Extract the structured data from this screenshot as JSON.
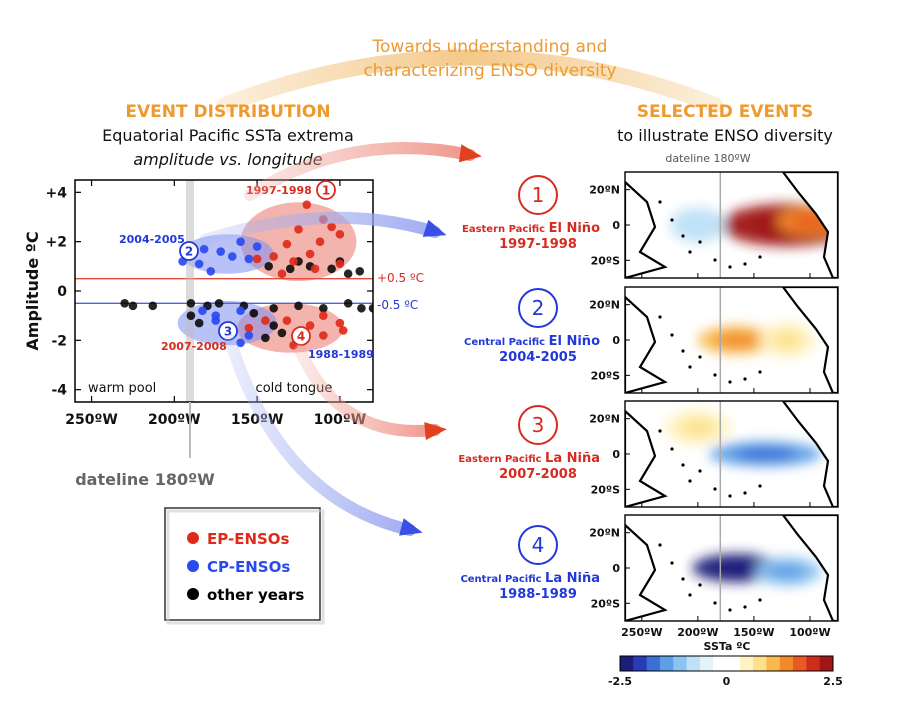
{
  "header": {
    "title_line1": "Towards understanding and",
    "title_line2": "characterizing ENSO diversity"
  },
  "left": {
    "heading": "EVENT DISTRIBUTION",
    "subtitle1": "Equatorial Pacific SSTa extrema",
    "subtitle2": "amplitude vs. longitude",
    "dateline_label": "dateline 180ºW",
    "pos_threshold_label": "+0.5 ºC",
    "neg_threshold_label": "-0.5 ºC",
    "warm_pool_label": "warm pool",
    "cold_tongue_label": "cold tongue",
    "event_labels": [
      {
        "text": "1997-1998",
        "color": "#d62b1e"
      },
      {
        "text": "2004-2005",
        "color": "#2238d8"
      },
      {
        "text": "1988-1989",
        "color": "#2238d8"
      },
      {
        "text": "2007-2008",
        "color": "#d62b1e"
      }
    ]
  },
  "right": {
    "heading": "SELECTED EVENTS",
    "subtitle": "to illustrate ENSO diversity",
    "dateline_label": "dateline 180ºW",
    "events": [
      {
        "num": "1",
        "small": "Eastern Pacific",
        "big": "El Niño",
        "years": "1997-1998",
        "color": "#d62b1e"
      },
      {
        "num": "2",
        "small": "Central Pacific",
        "big": "El Niño",
        "years": "2004-2005",
        "color": "#2238d8"
      },
      {
        "num": "3",
        "small": "Eastern Pacific",
        "big": "La Niña",
        "years": "2007-2008",
        "color": "#d62b1e"
      },
      {
        "num": "4",
        "small": "Central Pacific",
        "big": "La Niña",
        "years": "1988-1989",
        "color": "#2238d8"
      }
    ],
    "map_lat_labels": [
      "20ºN",
      "0",
      "20ºS"
    ],
    "map_lon_labels": [
      "250ºW",
      "200ºW",
      "150ºW",
      "100ºW"
    ],
    "colorbar": {
      "title": "SSTa ºC",
      "tick_labels": [
        "-2.5",
        "0",
        "2.5"
      ],
      "colors": [
        "#1b1f7a",
        "#2a3bb8",
        "#3c6fd6",
        "#5d9ee6",
        "#8cc3f0",
        "#bfe1f7",
        "#e4f3fb",
        "#ffffff",
        "#ffffff",
        "#fff3c4",
        "#fde08a",
        "#f9b94d",
        "#f28a2c",
        "#e85a22",
        "#d02c1c",
        "#a01515"
      ]
    }
  },
  "legend": {
    "items": [
      {
        "label": "EP-ENSOs",
        "color": "#e02a1a"
      },
      {
        "label": "CP-ENSOs",
        "color": "#2a4af0"
      },
      {
        "label": "other years",
        "color": "#000000"
      }
    ]
  },
  "chart_data": {
    "type": "scatter",
    "title": "Equatorial Pacific SSTa extrema",
    "xlabel": "",
    "ylabel": "Amplitude ºC",
    "x_ticks": [
      250,
      200,
      150,
      100
    ],
    "x_tick_labels": [
      "250ºW",
      "200ºW",
      "150ºW",
      "100ºW"
    ],
    "y_ticks": [
      4,
      2,
      0,
      -2,
      -4
    ],
    "y_tick_labels": [
      "+4",
      "+2",
      "0",
      "-2",
      "-4"
    ],
    "xlim": [
      260,
      80
    ],
    "ylim": [
      -4.5,
      4.5
    ],
    "reference_lines": [
      0.5,
      -0.5
    ],
    "series": [
      {
        "name": "EP-ENSOs",
        "color": "#e02a1a",
        "points": [
          [
            120,
            3.5
          ],
          [
            110,
            2.9
          ],
          [
            125,
            2.5
          ],
          [
            105,
            2.6
          ],
          [
            100,
            2.3
          ],
          [
            112,
            2.0
          ],
          [
            132,
            1.9
          ],
          [
            118,
            1.5
          ],
          [
            140,
            1.4
          ],
          [
            150,
            1.3
          ],
          [
            128,
            1.2
          ],
          [
            100,
            1.1
          ],
          [
            115,
            0.9
          ],
          [
            135,
            0.7
          ],
          [
            110,
            -1.0
          ],
          [
            100,
            -1.3
          ],
          [
            118,
            -1.4
          ],
          [
            132,
            -1.2
          ],
          [
            110,
            -1.8
          ],
          [
            123,
            -2.0
          ],
          [
            145,
            -1.2
          ],
          [
            155,
            -1.5
          ],
          [
            98,
            -1.6
          ],
          [
            128,
            -2.2
          ]
        ]
      },
      {
        "name": "CP-ENSOs",
        "color": "#2a4af0",
        "points": [
          [
            160,
            2.0
          ],
          [
            172,
            1.6
          ],
          [
            182,
            1.7
          ],
          [
            150,
            1.8
          ],
          [
            155,
            1.3
          ],
          [
            185,
            1.1
          ],
          [
            178,
            0.8
          ],
          [
            165,
            1.4
          ],
          [
            195,
            1.2
          ],
          [
            160,
            -0.8
          ],
          [
            175,
            -1.0
          ],
          [
            183,
            -0.8
          ],
          [
            168,
            -1.4
          ],
          [
            155,
            -1.8
          ],
          [
            160,
            -2.1
          ],
          [
            175,
            -1.2
          ]
        ]
      },
      {
        "name": "other years",
        "color": "#000000",
        "points": [
          [
            230,
            -0.5
          ],
          [
            225,
            -0.6
          ],
          [
            213,
            -0.6
          ],
          [
            190,
            -0.5
          ],
          [
            180,
            -0.6
          ],
          [
            173,
            -0.5
          ],
          [
            158,
            -0.6
          ],
          [
            140,
            -0.7
          ],
          [
            125,
            -0.6
          ],
          [
            110,
            -0.7
          ],
          [
            95,
            -0.5
          ],
          [
            87,
            -0.7
          ],
          [
            80,
            -0.7
          ],
          [
            143,
            1.0
          ],
          [
            130,
            0.9
          ],
          [
            125,
            1.2
          ],
          [
            118,
            1.0
          ],
          [
            105,
            0.9
          ],
          [
            95,
            0.7
          ],
          [
            88,
            0.8
          ],
          [
            100,
            1.2
          ],
          [
            140,
            -1.4
          ],
          [
            135,
            -1.7
          ],
          [
            145,
            -1.9
          ],
          [
            165,
            -1.6
          ],
          [
            152,
            -0.9
          ],
          [
            190,
            -1.0
          ],
          [
            185,
            -1.3
          ]
        ]
      }
    ],
    "event_ellipses": [
      {
        "label": "1",
        "color": "#e8766a",
        "center": [
          125,
          2.0
        ],
        "semi_x": 35,
        "semi_y": 1.6
      },
      {
        "label": "2",
        "color": "#7e8ff0",
        "center": [
          168,
          1.5
        ],
        "semi_x": 28,
        "semi_y": 0.8
      },
      {
        "label": "3",
        "color": "#e8766a",
        "center": [
          130,
          -1.5
        ],
        "semi_x": 32,
        "semi_y": 1.0
      },
      {
        "label": "4",
        "color": "#7e8ff0",
        "center": [
          168,
          -1.3
        ],
        "semi_x": 30,
        "semi_y": 0.9
      }
    ]
  },
  "maps": [
    {
      "event": "1",
      "anomaly": [
        {
          "lon": 120,
          "lat": 0,
          "value": 2.5,
          "rx": 60,
          "ry": 12
        },
        {
          "lon": 100,
          "lat": 2,
          "value": 1.5,
          "rx": 30,
          "ry": 8
        },
        {
          "lon": 200,
          "lat": 0,
          "value": -0.8,
          "rx": 25,
          "ry": 10
        }
      ]
    },
    {
      "event": "2",
      "anomaly": [
        {
          "lon": 165,
          "lat": 0,
          "value": 1.2,
          "rx": 35,
          "ry": 8
        },
        {
          "lon": 120,
          "lat": 0,
          "value": 0.6,
          "rx": 25,
          "ry": 10
        }
      ]
    },
    {
      "event": "3",
      "anomaly": [
        {
          "lon": 140,
          "lat": 0,
          "value": -1.5,
          "rx": 50,
          "ry": 7
        },
        {
          "lon": 200,
          "lat": 15,
          "value": 0.6,
          "rx": 30,
          "ry": 10
        }
      ]
    },
    {
      "event": "4",
      "anomaly": [
        {
          "lon": 165,
          "lat": 0,
          "value": -2.3,
          "rx": 40,
          "ry": 8
        },
        {
          "lon": 120,
          "lat": -2,
          "value": -1.2,
          "rx": 30,
          "ry": 8
        }
      ]
    }
  ]
}
